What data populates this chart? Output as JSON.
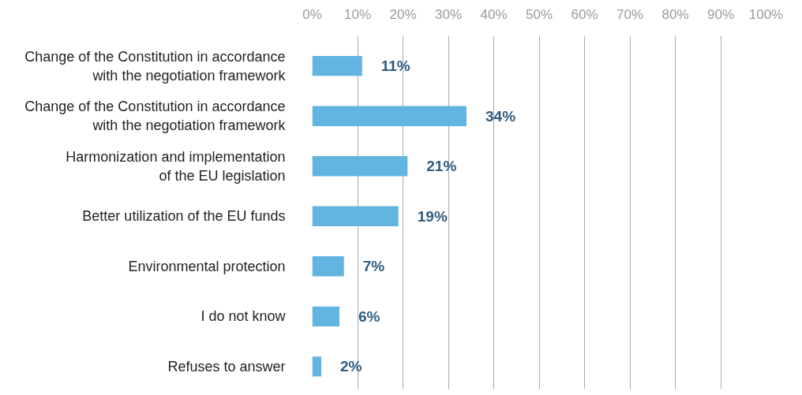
{
  "chart_data": {
    "type": "bar",
    "orientation": "horizontal",
    "categories": [
      "Change of the Constitution in accordance\nwith the negotiation framework",
      "Change of the Constitution in accordance\nwith the negotiation framework",
      "Harmonization and implementation\nof the EU legislation",
      "Better utilization of the EU funds",
      "Environmental protection",
      "I do not know",
      "Refuses to answer"
    ],
    "values": [
      11,
      34,
      21,
      19,
      7,
      6,
      2
    ],
    "value_labels": [
      "11%",
      "34%",
      "21%",
      "19%",
      "7%",
      "6%",
      "2%"
    ],
    "color": "#62b5e0",
    "xlim": [
      0,
      100
    ],
    "xticks": [
      {
        "value": 0,
        "label": "0%"
      },
      {
        "value": 10,
        "label": "10%"
      },
      {
        "value": 20,
        "label": "20%"
      },
      {
        "value": 30,
        "label": "30%"
      },
      {
        "value": 40,
        "label": "40%"
      },
      {
        "value": 50,
        "label": "50%"
      },
      {
        "value": 60,
        "label": "60%"
      },
      {
        "value": 70,
        "label": "70%"
      },
      {
        "value": 80,
        "label": "80%"
      },
      {
        "value": 90,
        "label": "90%"
      },
      {
        "value": 100,
        "label": "100%"
      }
    ],
    "grid": "x"
  }
}
